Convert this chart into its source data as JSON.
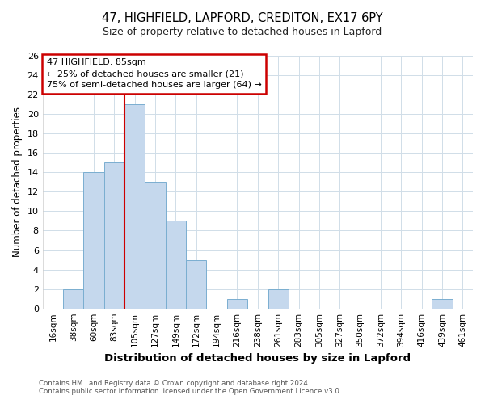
{
  "title": "47, HIGHFIELD, LAPFORD, CREDITON, EX17 6PY",
  "subtitle": "Size of property relative to detached houses in Lapford",
  "xlabel": "Distribution of detached houses by size in Lapford",
  "ylabel": "Number of detached properties",
  "bar_labels": [
    "16sqm",
    "38sqm",
    "60sqm",
    "83sqm",
    "105sqm",
    "127sqm",
    "149sqm",
    "172sqm",
    "194sqm",
    "216sqm",
    "238sqm",
    "261sqm",
    "283sqm",
    "305sqm",
    "327sqm",
    "350sqm",
    "372sqm",
    "394sqm",
    "416sqm",
    "439sqm",
    "461sqm"
  ],
  "bar_values": [
    0,
    2,
    14,
    15,
    21,
    13,
    9,
    5,
    0,
    1,
    0,
    2,
    0,
    0,
    0,
    0,
    0,
    0,
    0,
    1,
    0
  ],
  "bar_color": "#c5d8ed",
  "bar_edge_color": "#7aaed0",
  "annotation_title": "47 HIGHFIELD: 85sqm",
  "annotation_line1": "← 25% of detached houses are smaller (21)",
  "annotation_line2": "75% of semi-detached houses are larger (64) →",
  "annotation_box_color": "#ffffff",
  "annotation_box_edge": "#cc0000",
  "ylim": [
    0,
    26
  ],
  "yticks": [
    0,
    2,
    4,
    6,
    8,
    10,
    12,
    14,
    16,
    18,
    20,
    22,
    24,
    26
  ],
  "footer1": "Contains HM Land Registry data © Crown copyright and database right 2024.",
  "footer2": "Contains public sector information licensed under the Open Government Licence v3.0.",
  "background_color": "#ffffff",
  "grid_color": "#d0dde8",
  "property_line_color": "#cc0000",
  "property_line_x": 3.5
}
